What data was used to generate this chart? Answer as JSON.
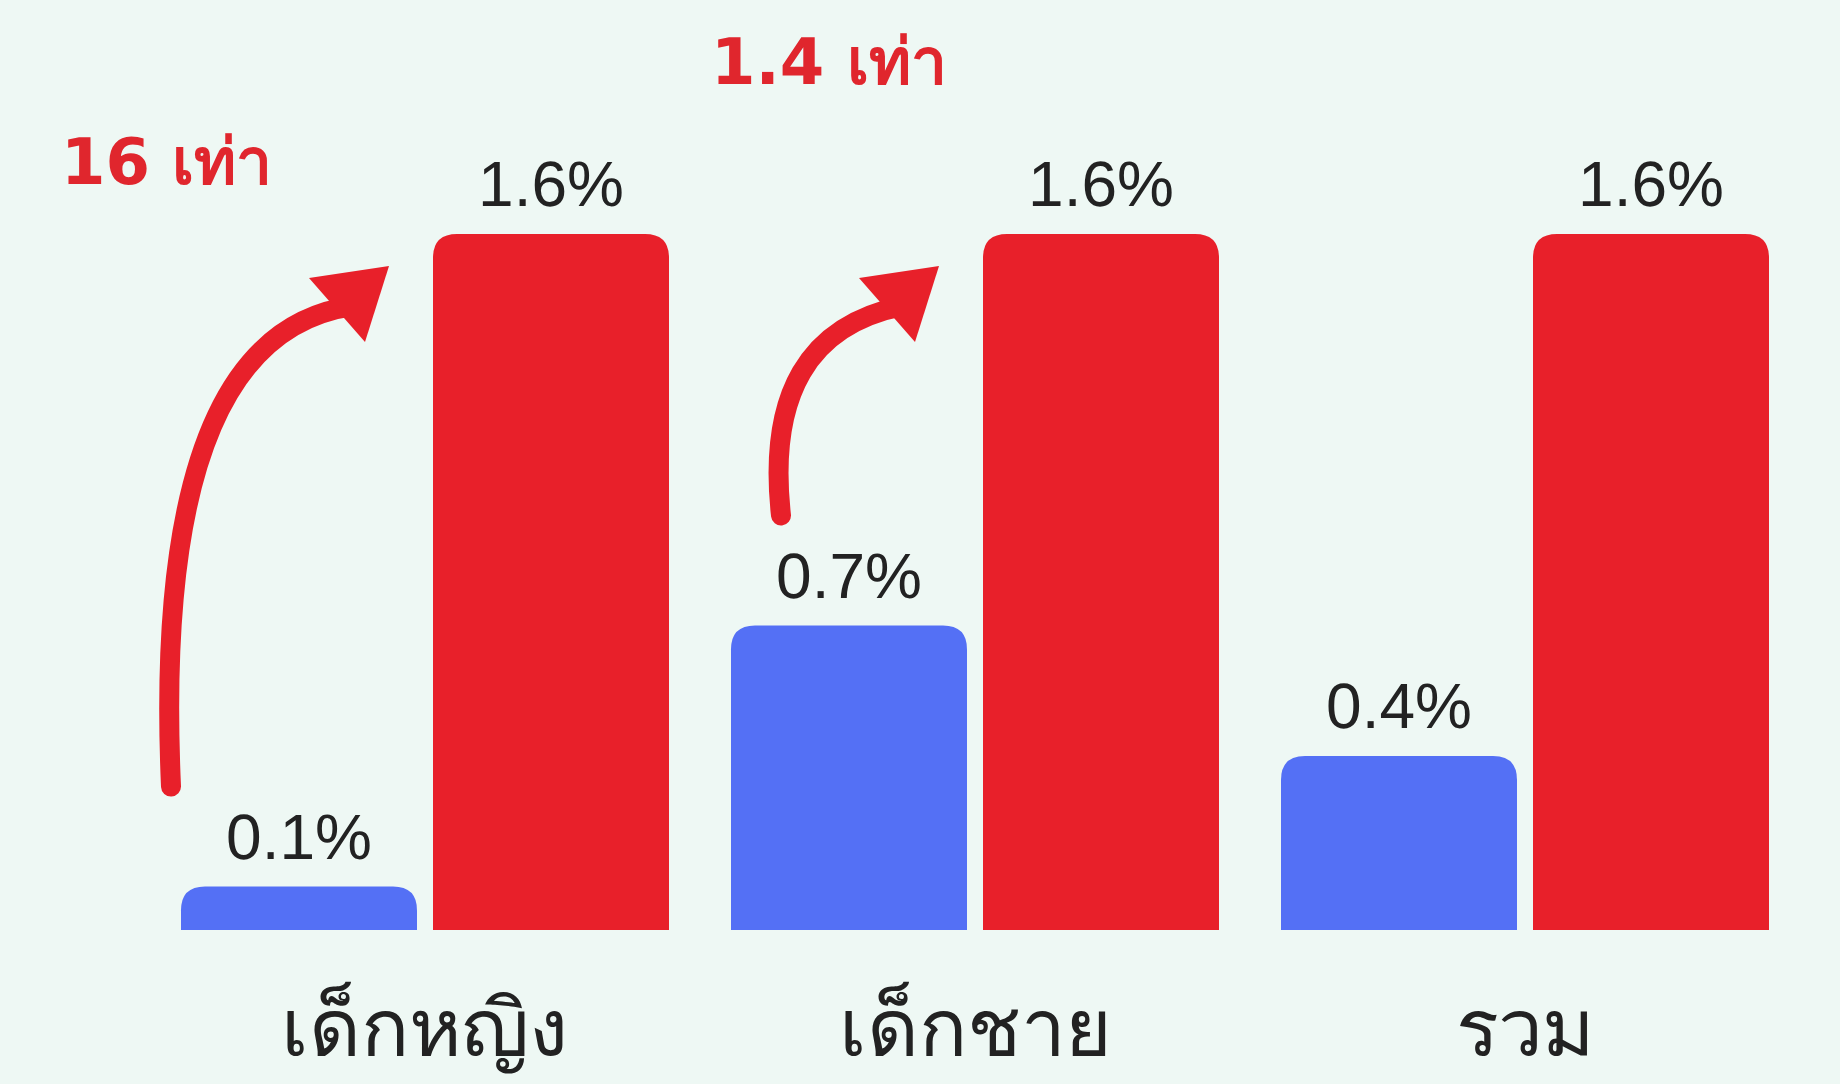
{
  "chart_data": {
    "type": "bar",
    "categories": [
      "เด็กหญิง",
      "เด็กชาย",
      "รวม"
    ],
    "series": [
      {
        "color": "#5470f5",
        "values": [
          0.1,
          0.7,
          0.4
        ],
        "value_labels": [
          "0.1%",
          "0.7%",
          "0.4%"
        ]
      },
      {
        "color": "#e8202a",
        "values": [
          1.6,
          1.6,
          1.6
        ],
        "value_labels": [
          "1.6%",
          "1.6%",
          "1.6%"
        ]
      }
    ],
    "annotations": [
      "16 เท่า",
      "1.4 เท่า"
    ]
  }
}
